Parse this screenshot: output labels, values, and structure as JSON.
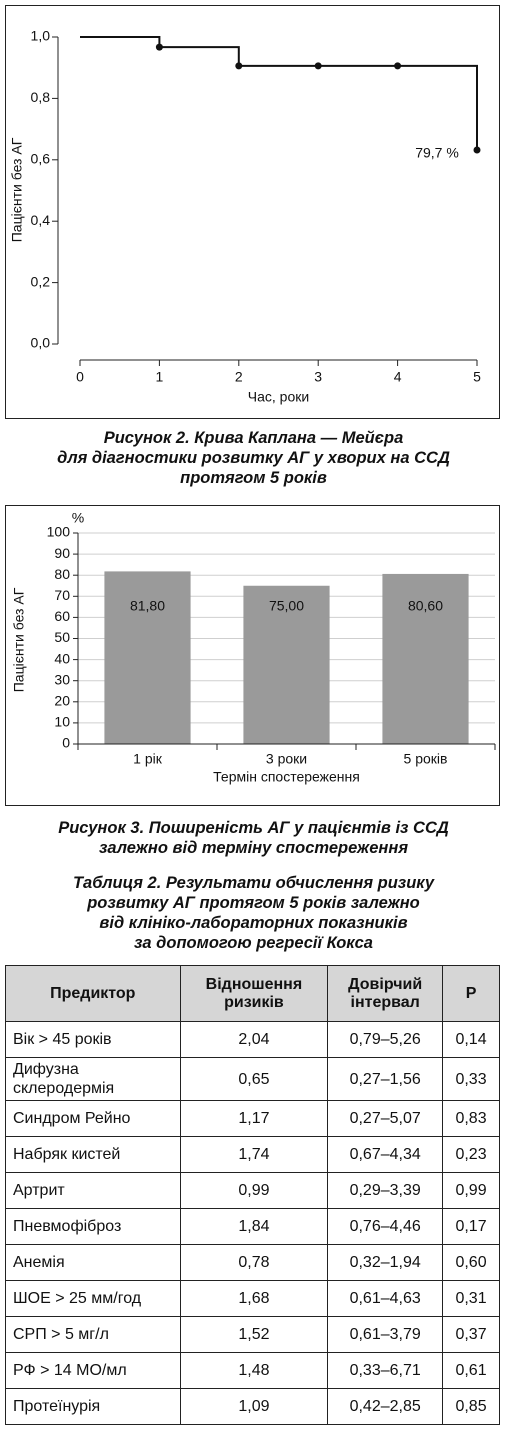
{
  "chart_data": [
    {
      "type": "line",
      "step": true,
      "x": [
        0,
        1,
        2,
        3,
        4,
        5
      ],
      "values": [
        1.0,
        0.967,
        0.906,
        0.906,
        0.906,
        0.632
      ],
      "color": "#111111",
      "xlim": [
        0,
        5
      ],
      "xticks": [
        0,
        1,
        2,
        3,
        4,
        5
      ],
      "ylim": [
        0,
        1
      ],
      "yticks": [
        {
          "value": 0,
          "label": "0,0"
        },
        {
          "value": 0.2,
          "label": "0,2"
        },
        {
          "value": 0.4,
          "label": "0,4"
        },
        {
          "value": 0.6,
          "label": "0,6"
        },
        {
          "value": 0.8,
          "label": "0,8"
        },
        {
          "value": 1,
          "label": "1,0"
        }
      ],
      "xlabel": "Час, роки",
      "ylabel": "Пацієнти без АГ",
      "annotation": "79,7 %",
      "caption": [
        "Рисунок 2.  Крива Каплана — Мейєра",
        "для діагностики розвитку АГ у хворих на ССД",
        "протягом 5 років"
      ]
    },
    {
      "type": "bar",
      "categories": [
        "1 рік",
        "3 роки",
        "5 років"
      ],
      "values": [
        81.8,
        75,
        80.6
      ],
      "value_labels": [
        "81,80",
        "75,00",
        "80,60"
      ],
      "color": "#9a9a9a",
      "ylim": [
        0,
        100
      ],
      "yticks": [
        0,
        10,
        20,
        30,
        40,
        50,
        60,
        70,
        80,
        90,
        100
      ],
      "y_unit": "%",
      "grid": true,
      "xlabel": "Термін спостереження",
      "ylabel": "Пацієнти без АГ",
      "caption": [
        "Рисунок 3.  Поширеність АГ у пацієнтів із ССД",
        "залежно від терміну спостереження"
      ]
    }
  ],
  "table": {
    "title": [
      "Таблиця 2.  Результати обчислення ризику",
      "розвитку АГ протягом 5 років залежно",
      "від клініко-лабораторних показників",
      "за допомогою регресії Кокса"
    ],
    "header": [
      "Предиктор",
      "Відношення ризиків",
      "Довірчий інтервал",
      "P"
    ],
    "rows": [
      [
        "Вік > 45 років",
        "2,04",
        "0,79–5,26",
        "0,14"
      ],
      [
        "Дифузна склеродермія",
        "0,65",
        "0,27–1,56",
        "0,33"
      ],
      [
        "Синдром Рейно",
        "1,17",
        "0,27–5,07",
        "0,83"
      ],
      [
        "Набряк кистей",
        "1,74",
        "0,67–4,34",
        "0,23"
      ],
      [
        "Артрит",
        "0,99",
        "0,29–3,39",
        "0,99"
      ],
      [
        "Пневмофіброз",
        "1,84",
        "0,76–4,46",
        "0,17"
      ],
      [
        "Анемія",
        "0,78",
        "0,32–1,94",
        "0,60"
      ],
      [
        "ШОЕ > 25 мм/год",
        "1,68",
        "0,61–4,63",
        "0,31"
      ],
      [
        "СРП > 5 мг/л",
        "1,52",
        "0,61–3,79",
        "0,37"
      ],
      [
        "РФ > 14 МО/мл",
        "1,48",
        "0,33–6,71",
        "0,61"
      ],
      [
        "Протеїнурія",
        "1,09",
        "0,42–2,85",
        "0,85"
      ]
    ]
  }
}
